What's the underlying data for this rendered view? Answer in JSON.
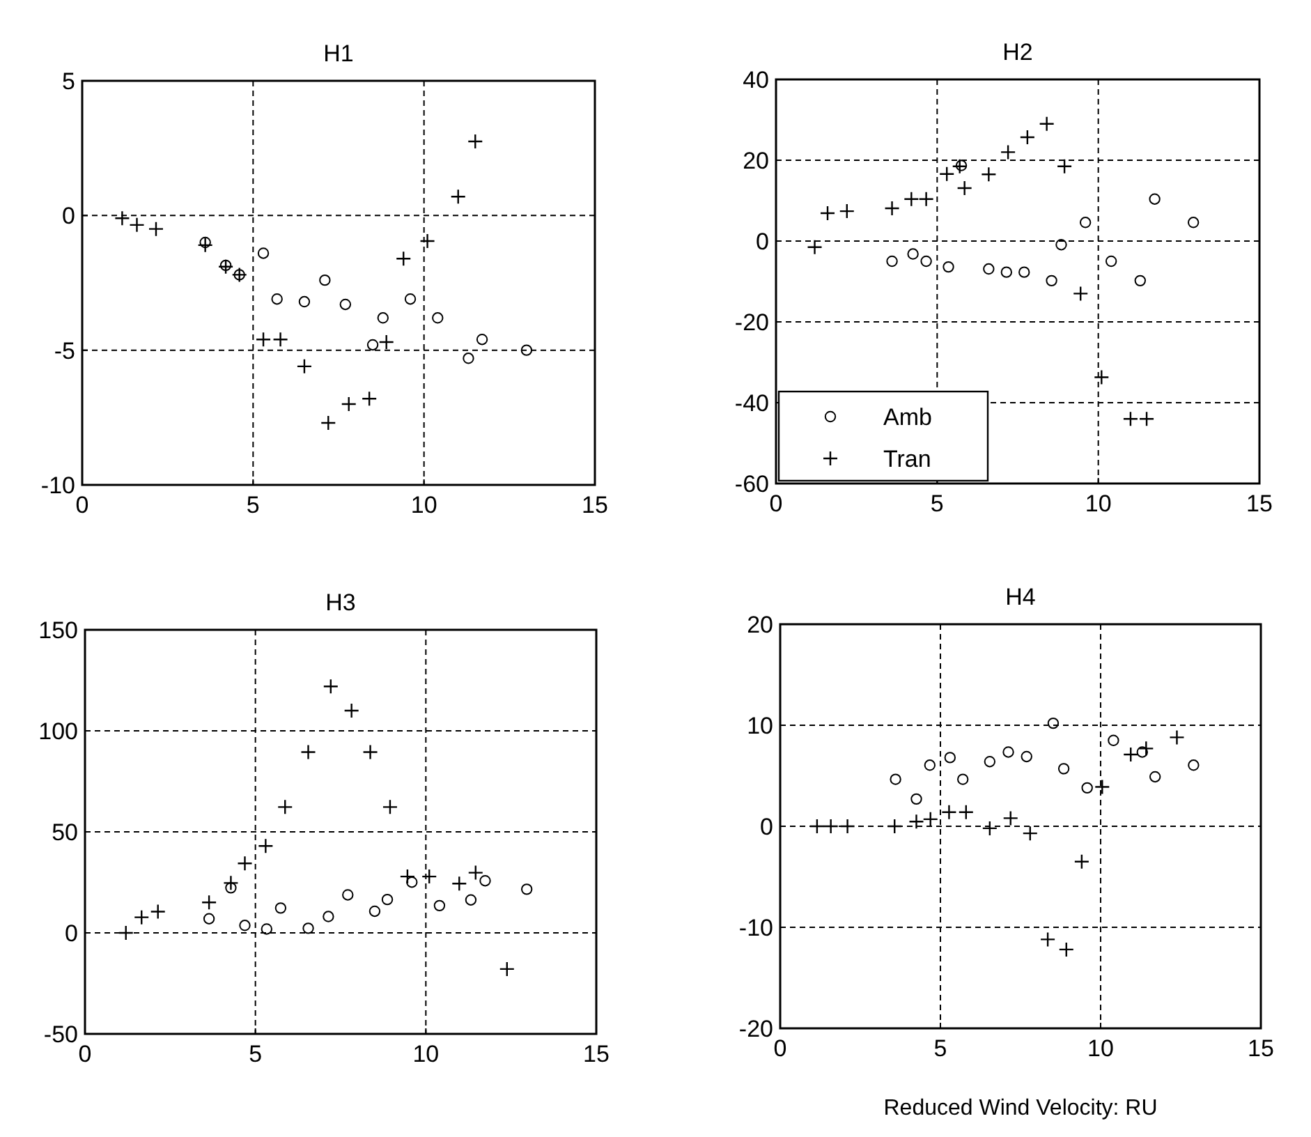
{
  "chart_data": [
    {
      "type": "scatter",
      "title": "H1",
      "xlim": [
        0,
        15
      ],
      "xticks": [
        0,
        5,
        10,
        15
      ],
      "ylim": [
        -10,
        5
      ],
      "yticks": [
        -10,
        -5,
        0,
        5
      ],
      "grid": true,
      "legend": false,
      "series": [
        {
          "color": "#000000",
          "marker": "circle",
          "x": [
            3.6,
            4.2,
            4.6,
            5.3,
            5.7,
            6.5,
            7.1,
            7.7,
            8.5,
            8.8,
            9.6,
            10.4,
            11.3,
            11.7,
            13.0
          ],
          "values": [
            -1.0,
            -1.85,
            -2.2,
            -1.4,
            -3.1,
            -3.2,
            -2.4,
            -3.3,
            -4.8,
            -3.8,
            -3.1,
            -3.8,
            -5.3,
            -4.6,
            -5.0
          ]
        },
        {
          "color": "#000000",
          "marker": "cross",
          "x": [
            1.17,
            1.6,
            2.16,
            3.6,
            4.2,
            4.6,
            5.3,
            5.8,
            6.5,
            7.2,
            7.8,
            8.4,
            8.9,
            9.4,
            10.1,
            11.0,
            11.5
          ],
          "values": [
            -0.1,
            -0.35,
            -0.5,
            -1.1,
            -1.9,
            -2.2,
            -4.6,
            -4.6,
            -5.6,
            -7.7,
            -7.0,
            -6.8,
            -4.7,
            -1.6,
            -0.95,
            0.7,
            2.75
          ]
        }
      ]
    },
    {
      "type": "scatter",
      "title": "H2",
      "xlim": [
        0,
        15
      ],
      "xticks": [
        0,
        5,
        10,
        15
      ],
      "ylim": [
        -60,
        40
      ],
      "yticks": [
        -60,
        -40,
        -20,
        0,
        20,
        40
      ],
      "grid": true,
      "legend": "bottom left",
      "series": [
        {
          "name": "Amb",
          "color": "#000000",
          "marker": "circle",
          "x": [
            3.6,
            4.25,
            4.66,
            5.35,
            5.75,
            6.6,
            7.15,
            7.7,
            8.55,
            8.85,
            9.6,
            10.4,
            11.3,
            11.75,
            12.95
          ],
          "values": [
            -5,
            -3.2,
            -5,
            -6.4,
            18.7,
            -6.9,
            -7.7,
            -7.7,
            -9.8,
            -0.9,
            4.6,
            -5,
            -9.8,
            10.4,
            4.6
          ]
        },
        {
          "name": "Tran",
          "color": "#000000",
          "marker": "cross",
          "x": [
            1.2,
            1.6,
            2.2,
            3.6,
            4.2,
            4.66,
            5.3,
            5.7,
            5.85,
            6.6,
            7.2,
            7.8,
            8.4,
            8.95,
            9.45,
            10.1,
            11.0,
            11.5
          ],
          "values": [
            -1.5,
            6.9,
            7.4,
            8.1,
            10.4,
            10.4,
            16.6,
            18.5,
            13.1,
            16.5,
            22,
            25.7,
            29,
            18.5,
            -13,
            -33.7,
            -44,
            -44
          ]
        }
      ]
    },
    {
      "type": "scatter",
      "title": "H3",
      "xlim": [
        0,
        15
      ],
      "xticks": [
        0,
        5,
        10,
        15
      ],
      "ylim": [
        -50,
        150
      ],
      "yticks": [
        -50,
        0,
        50,
        100,
        150
      ],
      "grid": true,
      "legend": false,
      "series": [
        {
          "color": "#000000",
          "marker": "circle",
          "x": [
            3.64,
            4.28,
            4.69,
            5.33,
            5.74,
            6.55,
            7.14,
            7.71,
            8.5,
            8.87,
            9.59,
            10.4,
            11.32,
            11.74,
            12.96
          ],
          "values": [
            7,
            22.3,
            3.7,
            1.9,
            12.3,
            2.3,
            8.1,
            18.8,
            10.7,
            16.5,
            25.1,
            13.5,
            16.3,
            25.8,
            21.6
          ]
        },
        {
          "color": "#000000",
          "marker": "cross",
          "x": [
            1.2,
            1.66,
            2.14,
            3.64,
            4.28,
            4.69,
            5.3,
            5.87,
            6.55,
            7.21,
            7.82,
            8.37,
            8.95,
            9.46,
            10.1,
            10.98,
            11.46,
            12.38
          ],
          "values": [
            0,
            7.7,
            10.5,
            15.1,
            24.7,
            34.4,
            43,
            62.3,
            89.5,
            122,
            110,
            89.5,
            62.3,
            27.9,
            27.9,
            24.4,
            29.8,
            -17.9
          ]
        }
      ]
    },
    {
      "type": "scatter",
      "title": "H4",
      "xlabel": "Reduced Wind Velocity: RU",
      "xlim": [
        0,
        15
      ],
      "xticks": [
        0,
        5,
        10,
        15
      ],
      "ylim": [
        -20,
        20
      ],
      "yticks": [
        -20,
        -10,
        0,
        10,
        20
      ],
      "grid": true,
      "legend": false,
      "series": [
        {
          "color": "#000000",
          "marker": "circle",
          "x": [
            3.6,
            4.25,
            4.67,
            5.3,
            5.7,
            6.54,
            7.12,
            7.69,
            8.52,
            8.85,
            9.58,
            10.4,
            11.3,
            11.7,
            12.9
          ],
          "values": [
            4.65,
            2.7,
            6.05,
            6.8,
            4.65,
            6.4,
            7.35,
            6.9,
            10.2,
            5.7,
            3.8,
            8.5,
            7.35,
            4.9,
            6.05
          ]
        },
        {
          "color": "#000000",
          "marker": "cross",
          "x": [
            1.15,
            1.58,
            2.1,
            3.57,
            4.25,
            4.69,
            5.27,
            5.8,
            6.54,
            7.19,
            7.8,
            8.35,
            8.93,
            9.41,
            10.05,
            10.94,
            11.42,
            12.38
          ],
          "values": [
            0,
            0,
            0,
            0,
            0.47,
            0.7,
            1.4,
            1.4,
            -0.2,
            0.8,
            -0.7,
            -11.2,
            -12.2,
            -3.5,
            3.9,
            7.1,
            7.7,
            8.8
          ]
        }
      ]
    }
  ]
}
